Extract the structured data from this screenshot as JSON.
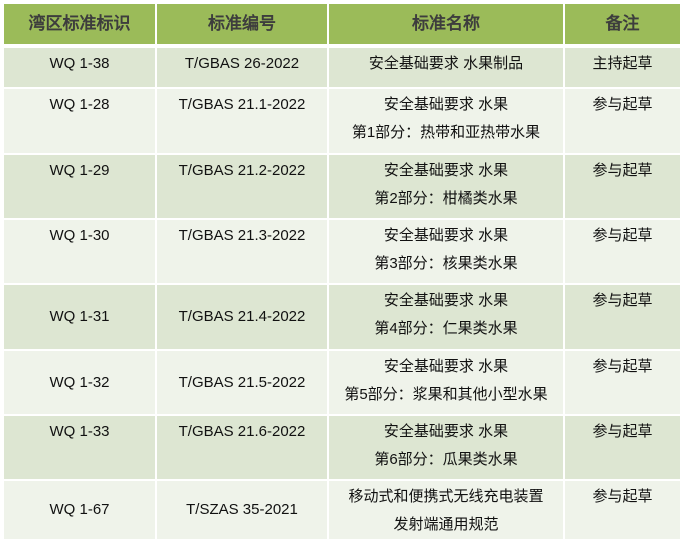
{
  "headers": [
    "湾区标准标识",
    "标准编号",
    "标准名称",
    "备注"
  ],
  "rows": [
    {
      "id": "WQ 1-38",
      "code": "T/GBAS 26-2022",
      "name": [
        "安全基础要求 水果制品"
      ],
      "note": "主持起草"
    },
    {
      "id": "WQ 1-28",
      "code": "T/GBAS 21.1-2022",
      "name": [
        "安全基础要求 水果",
        "第1部分：热带和亚热带水果"
      ],
      "note": "参与起草"
    },
    {
      "id": "WQ 1-29",
      "code": "T/GBAS 21.2-2022",
      "name": [
        "安全基础要求 水果",
        "第2部分：柑橘类水果"
      ],
      "note": "参与起草"
    },
    {
      "id": "WQ 1-30",
      "code": "T/GBAS 21.3-2022",
      "name": [
        "安全基础要求 水果",
        "第3部分：核果类水果"
      ],
      "note": "参与起草"
    },
    {
      "id": "WQ 1-31",
      "code": "T/GBAS 21.4-2022",
      "name": [
        "安全基础要求 水果",
        "第4部分：仁果类水果"
      ],
      "note": "参与起草"
    },
    {
      "id": "WQ 1-32",
      "code": "T/GBAS 21.5-2022",
      "name": [
        "安全基础要求 水果",
        "第5部分：浆果和其他小型水果"
      ],
      "note": "参与起草"
    },
    {
      "id": "WQ 1-33",
      "code": "T/GBAS 21.6-2022",
      "name": [
        "安全基础要求 水果",
        "第6部分：瓜果类水果"
      ],
      "note": "参与起草"
    },
    {
      "id": "WQ 1-67",
      "code": "T/SZAS 35-2021",
      "name": [
        "移动式和便携式无线充电装置",
        "发射端通用规范"
      ],
      "note": "参与起草"
    }
  ],
  "colors": {
    "header_bg": "#9BBB59",
    "row_odd": "#DDE6D2",
    "row_even": "#EFF3EA"
  }
}
